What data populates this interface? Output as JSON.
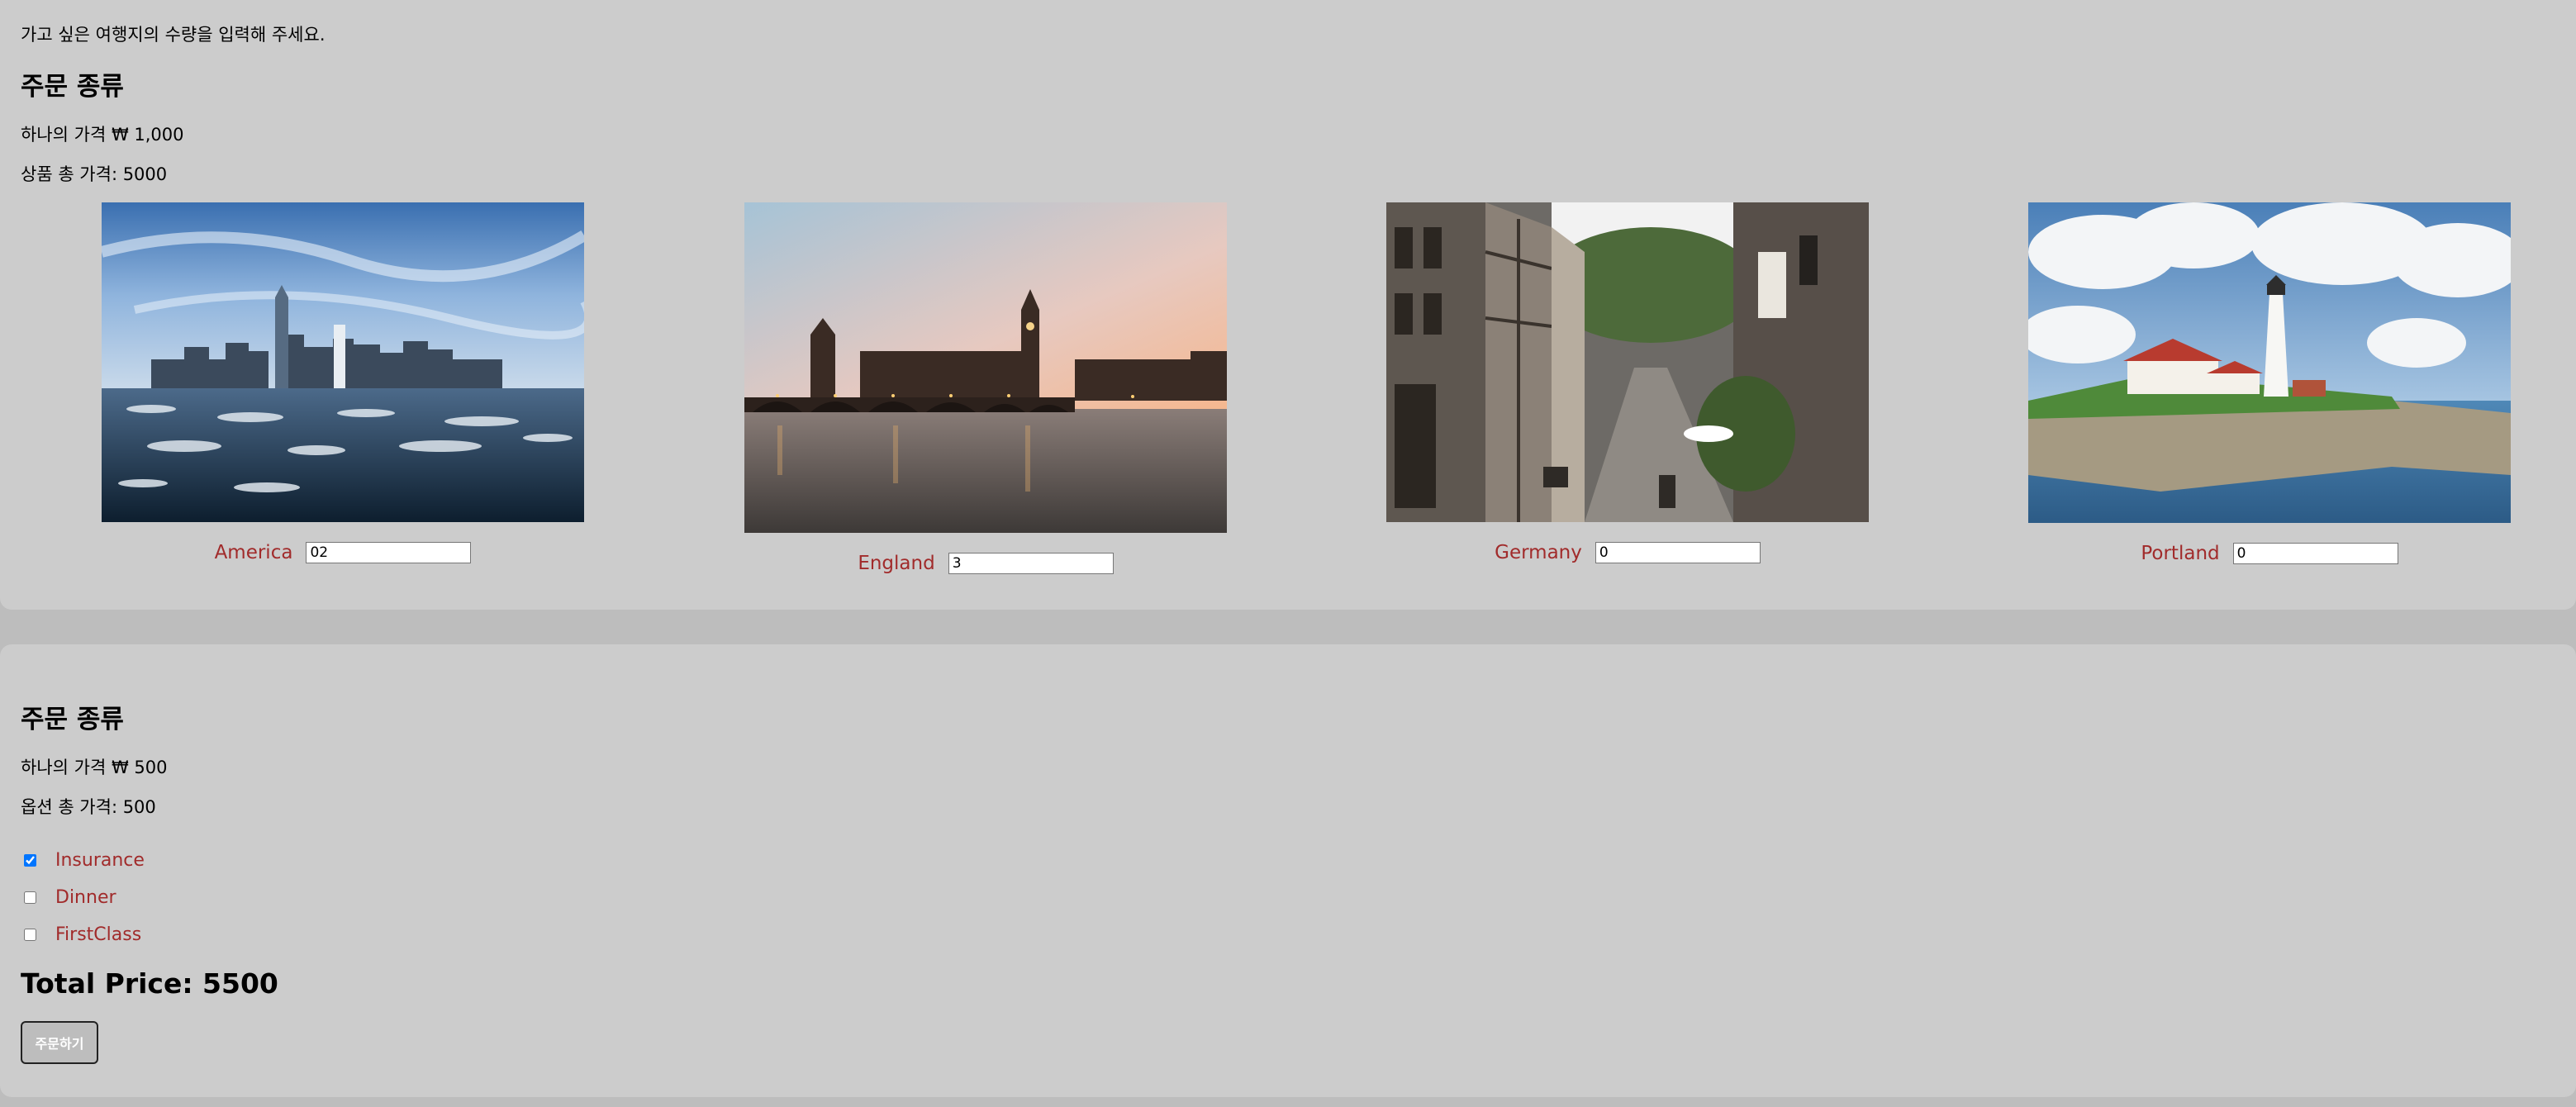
{
  "intro_text": "가고 싶은 여행지의 수량을 입력해 주세요.",
  "products": {
    "heading": "주문 종류",
    "unit_price_text": "하나의 가격 ₩ 1,000",
    "total_text": "상품 총 가격: 5000",
    "items": [
      {
        "name": "America",
        "quantity": "02"
      },
      {
        "name": "England",
        "quantity": "3"
      },
      {
        "name": "Germany",
        "quantity": "0"
      },
      {
        "name": "Portland",
        "quantity": "0"
      }
    ]
  },
  "options": {
    "heading": "주문 종류",
    "unit_price_text": "하나의 가격 ₩ 500",
    "total_text": "옵션 총 가격: 500",
    "items": [
      {
        "label": "Insurance",
        "checked": true
      },
      {
        "label": "Dinner",
        "checked": false
      },
      {
        "label": "FirstClass",
        "checked": false
      }
    ]
  },
  "total_price_text": "Total Price: 5500",
  "order_button_label": "주문하기",
  "colors": {
    "label": "#a12b2b",
    "panel": "#cccccc",
    "background": "#bdbdbd"
  }
}
